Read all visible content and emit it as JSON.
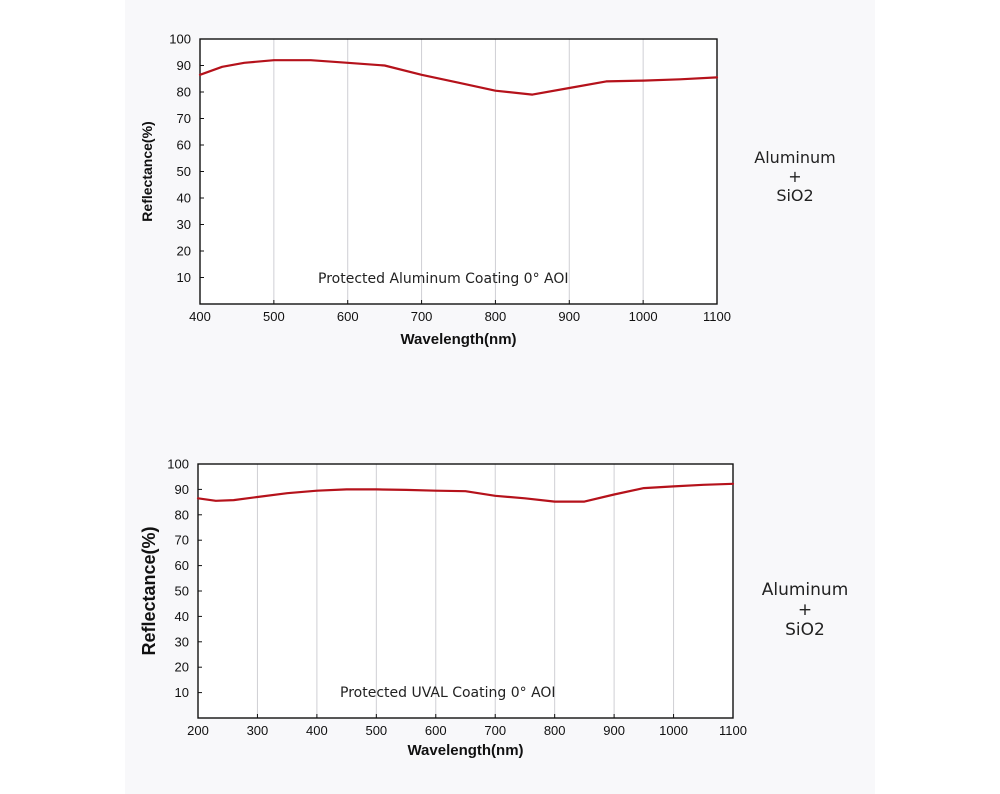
{
  "chart_data": [
    {
      "type": "line",
      "title": "Protected Aluminum Coating  0°  AOI",
      "xlabel": "Wavelength(nm)",
      "ylabel": "Reflectance(%)",
      "xlim": [
        400,
        1100
      ],
      "ylim": [
        0,
        100
      ],
      "x_ticks": [
        400,
        500,
        600,
        700,
        800,
        900,
        1000,
        1100
      ],
      "y_ticks": [
        10,
        20,
        30,
        40,
        50,
        60,
        70,
        80,
        90,
        100
      ],
      "grid": "vertical",
      "line_color": "#b5121b",
      "series": [
        {
          "x": [
            400,
            430,
            460,
            500,
            550,
            600,
            650,
            700,
            750,
            800,
            850,
            900,
            950,
            1000,
            1050,
            1100
          ],
          "values": [
            86.5,
            89.5,
            91,
            92,
            92,
            91,
            90,
            86.5,
            83.5,
            80.5,
            79,
            81.5,
            84,
            84.3,
            84.8,
            85.5
          ]
        }
      ]
    },
    {
      "type": "line",
      "title": "Protected UVAL Coating  0°  AOI",
      "xlabel": "Wavelength(nm)",
      "ylabel": "Reflectance(%)",
      "xlim": [
        200,
        1100
      ],
      "ylim": [
        0,
        100
      ],
      "x_ticks": [
        200,
        300,
        400,
        500,
        600,
        700,
        800,
        900,
        1000,
        1100
      ],
      "y_ticks": [
        10,
        20,
        30,
        40,
        50,
        60,
        70,
        80,
        90,
        100
      ],
      "grid": "vertical",
      "line_color": "#b5121b",
      "series": [
        {
          "x": [
            200,
            230,
            260,
            300,
            350,
            400,
            450,
            500,
            550,
            600,
            650,
            700,
            750,
            800,
            850,
            900,
            950,
            1000,
            1050,
            1100
          ],
          "values": [
            86.5,
            85.5,
            85.8,
            87,
            88.5,
            89.5,
            90,
            90,
            89.8,
            89.5,
            89.3,
            87.5,
            86.5,
            85.2,
            85.2,
            88,
            90.5,
            91.2,
            91.8,
            92.2
          ]
        }
      ]
    }
  ],
  "side_notes": [
    {
      "line1": "Aluminum",
      "line2": "+",
      "line3": "SiO2"
    },
    {
      "line1": "Aluminum",
      "line2": "+",
      "line3": "SiO2"
    }
  ]
}
